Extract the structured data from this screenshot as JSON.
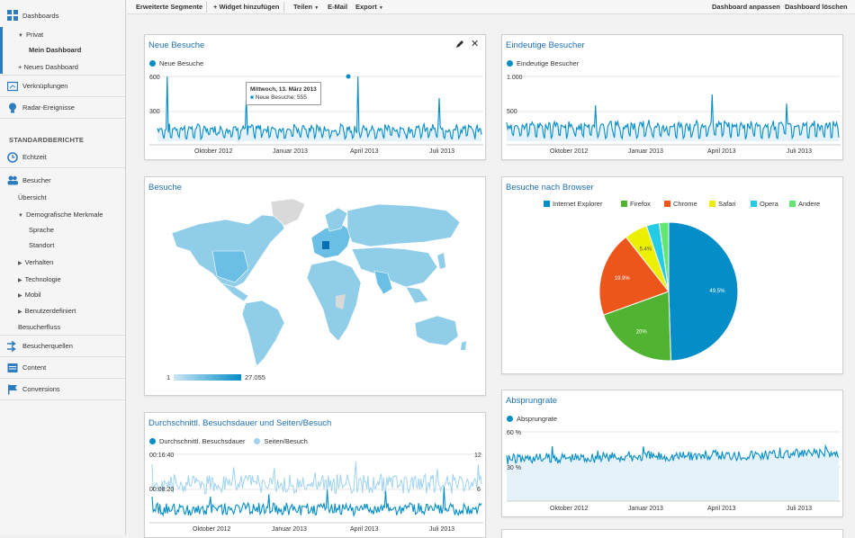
{
  "sidebar": {
    "dashboards": "Dashboards",
    "privat": "Privat",
    "mein_dashboard": "Mein Dashboard",
    "neues_dashboard": "+ Neues Dashboard",
    "verknuepfungen": "Verknüpfungen",
    "radar": "Radar-Ereignisse",
    "standardberichte": "STANDARDBERICHTE",
    "echtzeit": "Echtzeit",
    "besucher": "Besucher",
    "uebersicht": "Übersicht",
    "demografische": "Demografische Merkmale",
    "sprache": "Sprache",
    "standort": "Standort",
    "verhalten": "Verhalten",
    "technologie": "Technologie",
    "mobil": "Mobil",
    "benutzerdefiniert": "Benutzerdefiniert",
    "besucherfluss": "Besucherfluss",
    "besucherquellen": "Besucherquellen",
    "content": "Content",
    "conversions": "Conversions"
  },
  "toolbar": {
    "segments": "Erweiterte Segmente",
    "add_widget": "+ Widget hinzufügen",
    "share": "Teilen",
    "email": "E-Mail",
    "export": "Export",
    "customize": "Dashboard anpassen",
    "delete": "Dashboard löschen"
  },
  "panels": {
    "neue_besuche": {
      "title": "Neue Besuche",
      "legend": "Neue Besuche",
      "y_top": "600",
      "y_mid": "300",
      "x_labels": [
        "Oktober 2012",
        "Januar 2013",
        "April 2013",
        "Juli 2013"
      ],
      "tooltip_date": "Mittwoch, 13. März 2013",
      "tooltip_value": "Neue Besuche: 555"
    },
    "eindeutige": {
      "title": "Eindeutige Besucher",
      "legend": "Eindeutige Besucher",
      "y_top": "1.000",
      "y_mid": "500",
      "x_labels": [
        "Oktober 2012",
        "Januar 2013",
        "April 2013",
        "Juli 2013"
      ]
    },
    "besuche": {
      "title": "Besuche",
      "scale_min": "1",
      "scale_max": "27.055"
    },
    "browser": {
      "title": "Besuche nach Browser"
    },
    "dauer": {
      "title": "Durchschnittl. Besuchsdauer und Seiten/Besuch",
      "legend1": "Durchschnittl. Besuchsdauer",
      "legend2": "Seiten/Besuch",
      "y_top": "00:16:40",
      "y_mid": "00:08:20",
      "y2_top": "12",
      "y2_mid": "6",
      "x_labels": [
        "Oktober 2012",
        "Januar 2013",
        "April 2013",
        "Juli 2013"
      ]
    },
    "absprung": {
      "title": "Absprungrate",
      "legend": "Absprungrate",
      "y_top": "60 %",
      "y_mid": "30 %",
      "x_labels": [
        "Oktober 2012",
        "Januar 2013",
        "April 2013",
        "Juli 2013"
      ]
    }
  },
  "chart_data": [
    {
      "type": "pie",
      "title": "Besuche nach Browser",
      "categories": [
        "Internet Explorer",
        "Firefox",
        "Chrome",
        "Safari",
        "Opera",
        "Andere"
      ],
      "values": [
        49.5,
        20,
        19.9,
        5.4,
        3.0,
        2.2
      ],
      "labels": [
        "49.5%",
        "20%",
        "19.9%",
        "5.4%",
        "",
        ""
      ],
      "colors": [
        "#058dc7",
        "#50b432",
        "#ed561b",
        "#edef00",
        "#24cbe5",
        "#64e572"
      ]
    }
  ],
  "colors": {
    "accent": "#1f6fb2",
    "line": "#058dc7",
    "line_light": "#9fd3ef",
    "fill": "#e6f2fa"
  }
}
